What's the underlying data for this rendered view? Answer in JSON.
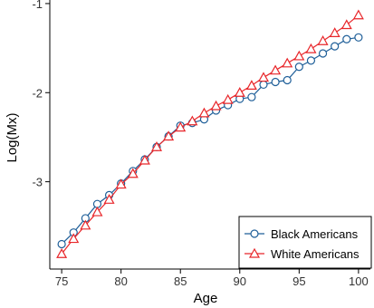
{
  "chart_data": {
    "type": "line",
    "title": "",
    "xlabel": "Age",
    "ylabel": "Log(Mx)",
    "xlim": [
      74,
      101
    ],
    "ylim": [
      -3.98,
      -0.96
    ],
    "x_ticks": [
      75,
      80,
      85,
      90,
      95,
      100
    ],
    "y_ticks": [
      -3,
      -2,
      -1
    ],
    "x_tick_labels": [
      "75",
      "80",
      "85",
      "90",
      "95",
      "100"
    ],
    "y_tick_labels": [
      "-3",
      "-2",
      "-1"
    ],
    "grid": false,
    "legend_position": "bottom-right",
    "x": [
      75,
      76,
      77,
      78,
      79,
      80,
      81,
      82,
      83,
      84,
      85,
      86,
      87,
      88,
      89,
      90,
      91,
      92,
      93,
      94,
      95,
      96,
      97,
      98,
      99,
      100
    ],
    "series": [
      {
        "name": "Black Americans",
        "color": "#1f5f99",
        "marker": "circle",
        "values": [
          -3.7,
          -3.57,
          -3.41,
          -3.25,
          -3.15,
          -3.02,
          -2.88,
          -2.75,
          -2.61,
          -2.49,
          -2.37,
          -2.34,
          -2.3,
          -2.2,
          -2.14,
          -2.07,
          -2.05,
          -1.91,
          -1.88,
          -1.86,
          -1.71,
          -1.64,
          -1.56,
          -1.48,
          -1.4,
          -1.38
        ]
      },
      {
        "name": "White Americans",
        "color": "#e8262a",
        "marker": "triangle",
        "values": [
          -3.81,
          -3.64,
          -3.49,
          -3.34,
          -3.2,
          -3.03,
          -2.91,
          -2.76,
          -2.61,
          -2.49,
          -2.39,
          -2.32,
          -2.23,
          -2.15,
          -2.08,
          -2.0,
          -1.92,
          -1.83,
          -1.75,
          -1.67,
          -1.59,
          -1.51,
          -1.42,
          -1.33,
          -1.24,
          -1.13
        ]
      }
    ]
  }
}
